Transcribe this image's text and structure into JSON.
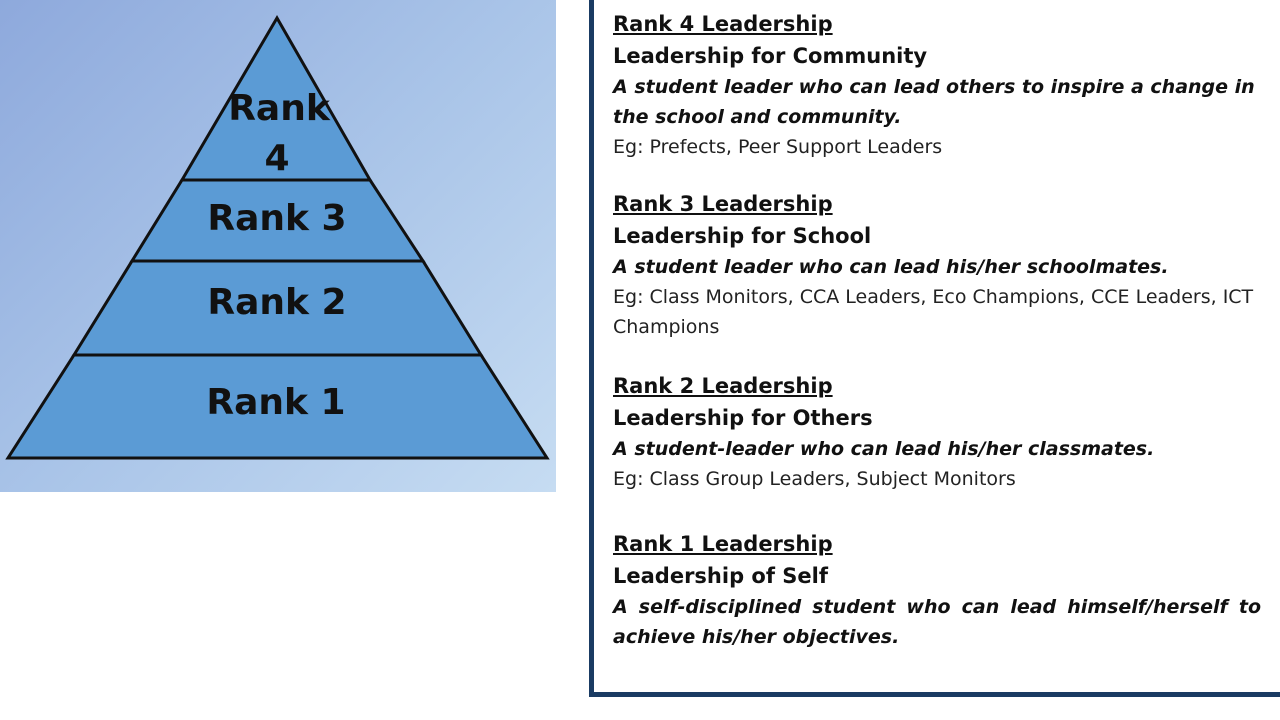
{
  "pyramid": {
    "tiers": [
      {
        "label_line1": "Rank",
        "label_line2": "4"
      },
      {
        "label": "Rank 3"
      },
      {
        "label": "Rank 2"
      },
      {
        "label": "Rank 1"
      }
    ],
    "fill_color": "#5b9bd5",
    "stroke_color": "#111111"
  },
  "descriptions": [
    {
      "heading": "Rank 4 Leadership",
      "subtitle": "Leadership for Community",
      "description": "A student leader who can lead others to inspire a change in the school and community.",
      "example": "Eg: Prefects, Peer Support Leaders"
    },
    {
      "heading": "Rank 3 Leadership",
      "subtitle": "Leadership for School",
      "description": "A student leader who can lead his/her schoolmates.",
      "example": "Eg: Class Monitors, CCA Leaders, Eco Champions, CCE Leaders, ICT Champions"
    },
    {
      "heading": "Rank 2 Leadership",
      "subtitle": "Leadership for Others",
      "description": "A student-leader who can lead his/her classmates.",
      "example": "Eg: Class Group Leaders, Subject Monitors"
    },
    {
      "heading": "Rank 1 Leadership",
      "subtitle": "Leadership of Self",
      "description": "A self-disciplined student who can lead himself/herself to achieve his/her objectives."
    }
  ],
  "colors": {
    "panel_border": "#1a3b63"
  }
}
